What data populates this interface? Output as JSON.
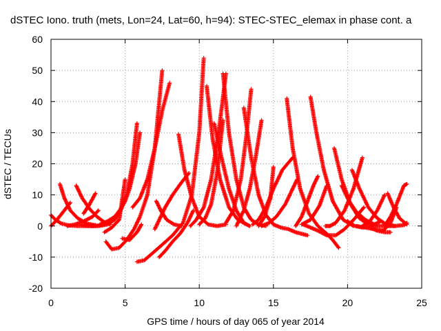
{
  "chart_data": {
    "type": "scatter",
    "title": "dSTEC Iono. truth (mets, Lon=24, Lat=60, h=94): STEC-STEC_elemax in phase cont. a",
    "xlabel": "GPS time / hours of day 065 of year 2014",
    "ylabel": "dSTEC  / TECUs",
    "xlim": [
      0,
      25
    ],
    "ylim": [
      -20,
      60
    ],
    "x_ticks": [
      0,
      5,
      10,
      15,
      20,
      25
    ],
    "y_ticks": [
      -20,
      -10,
      0,
      10,
      20,
      30,
      40,
      50,
      60
    ],
    "grid": true,
    "marker": "plus",
    "color": "#ff0000",
    "arcs": [
      {
        "x": [
          0.0,
          0.3,
          0.7,
          1.2,
          1.8,
          2.5,
          3.0
        ],
        "y": [
          3.5,
          2.0,
          0.8,
          0.2,
          0.0,
          0.0,
          0.3
        ]
      },
      {
        "x": [
          0.0,
          0.4,
          0.9,
          1.3
        ],
        "y": [
          0.0,
          2.0,
          5.0,
          7.5
        ]
      },
      {
        "x": [
          0.6,
          0.9,
          1.3,
          1.8,
          2.4,
          3.0
        ],
        "y": [
          13.5,
          9.0,
          5.0,
          2.5,
          0.8,
          0.2
        ]
      },
      {
        "x": [
          1.1,
          1.6,
          2.2,
          2.8,
          3.2
        ],
        "y": [
          0.0,
          0.5,
          1.5,
          3.0,
          5.0
        ]
      },
      {
        "x": [
          1.7,
          2.1,
          2.6,
          3.1,
          3.6,
          4.0
        ],
        "y": [
          13.0,
          9.0,
          5.5,
          3.0,
          1.2,
          0.5
        ]
      },
      {
        "x": [
          2.0,
          2.5,
          3.0,
          3.6,
          4.0
        ],
        "y": [
          0.5,
          0.0,
          0.0,
          0.5,
          1.5
        ]
      },
      {
        "x": [
          2.2,
          2.6,
          3.0
        ],
        "y": [
          4.0,
          7.0,
          10.5
        ]
      },
      {
        "x": [
          2.7,
          3.2,
          3.8,
          4.3,
          4.7,
          5.1,
          5.5,
          5.8
        ],
        "y": [
          0.0,
          0.0,
          0.5,
          2.0,
          5.0,
          10.0,
          20.0,
          33.0
        ]
      },
      {
        "x": [
          3.3,
          3.8,
          4.3,
          4.7,
          5.0,
          5.3,
          5.7,
          6.0
        ],
        "y": [
          0.5,
          1.5,
          3.0,
          5.5,
          8.0,
          12.0,
          20.0,
          30.0
        ]
      },
      {
        "x": [
          3.6,
          4.1,
          4.6,
          5.0
        ],
        "y": [
          -2.0,
          -0.5,
          2.0,
          15.0
        ]
      },
      {
        "x": [
          3.7,
          4.1,
          4.6,
          5.1,
          5.6,
          6.0,
          6.5,
          7.0,
          7.5
        ],
        "y": [
          -5.0,
          -7.5,
          -7.0,
          -4.5,
          -1.0,
          3.0,
          10.0,
          25.0,
          50.0
        ]
      },
      {
        "x": [
          4.8,
          5.3,
          5.8,
          6.1
        ],
        "y": [
          -4.0,
          -4.5,
          -2.0,
          0.5
        ]
      },
      {
        "x": [
          5.5,
          6.0,
          6.5,
          7.0,
          7.5,
          8.0
        ],
        "y": [
          6.0,
          9.0,
          15.0,
          25.0,
          37.0,
          46.0
        ]
      },
      {
        "x": [
          5.8,
          6.3,
          6.9,
          7.5,
          8.2,
          8.9,
          9.5,
          10.0,
          10.3
        ],
        "y": [
          -11.5,
          -11.0,
          -8.5,
          -6.0,
          -3.0,
          1.0,
          10.0,
          30.0,
          54.0
        ]
      },
      {
        "x": [
          7.0,
          7.3,
          7.7,
          8.2,
          8.8,
          9.3
        ],
        "y": [
          -1.0,
          2.0,
          6.0,
          10.0,
          14.0,
          17.0
        ]
      },
      {
        "x": [
          7.1,
          7.4,
          7.8,
          8.3,
          8.8
        ],
        "y": [
          8.0,
          5.0,
          2.0,
          0.5,
          0.0
        ]
      },
      {
        "x": [
          7.3,
          7.7,
          8.2,
          8.7,
          9.2,
          9.6
        ],
        "y": [
          -10.0,
          -8.0,
          -5.0,
          -2.5,
          1.0,
          5.0
        ]
      },
      {
        "x": [
          8.6,
          9.0,
          9.5,
          10.0,
          10.6,
          11.2,
          11.8
        ],
        "y": [
          29.5,
          18.0,
          9.0,
          3.0,
          0.5,
          0.0,
          0.5
        ]
      },
      {
        "x": [
          9.4,
          9.8,
          10.3,
          10.8,
          11.3,
          11.8
        ],
        "y": [
          0.0,
          2.0,
          6.0,
          15.0,
          30.0,
          49.0
        ]
      },
      {
        "x": [
          10.0,
          10.4,
          10.8,
          11.2,
          11.6
        ],
        "y": [
          0.5,
          2.5,
          7.0,
          17.0,
          34.0
        ]
      },
      {
        "x": [
          10.5,
          10.9,
          11.4,
          12.0,
          12.6,
          13.2
        ],
        "y": [
          45.0,
          28.0,
          15.0,
          6.0,
          2.0,
          0.5
        ]
      },
      {
        "x": [
          11.0,
          11.5,
          12.0,
          12.5,
          13.0,
          13.4
        ],
        "y": [
          33.0,
          22.0,
          12.0,
          5.0,
          1.0,
          0.0
        ]
      },
      {
        "x": [
          11.6,
          12.0,
          12.5,
          13.0,
          13.5,
          14.0,
          14.5
        ],
        "y": [
          49.0,
          30.0,
          15.0,
          6.0,
          2.0,
          0.5,
          0.0
        ]
      },
      {
        "x": [
          11.8,
          12.3,
          12.8,
          13.2,
          13.5
        ],
        "y": [
          1.0,
          5.0,
          15.0,
          30.0,
          44.0
        ]
      },
      {
        "x": [
          12.5,
          13.0,
          13.4,
          13.8,
          14.2
        ],
        "y": [
          0.0,
          5.0,
          12.0,
          22.0,
          34.0
        ]
      },
      {
        "x": [
          13.0,
          13.5,
          14.0,
          14.5,
          15.0,
          15.5,
          16.0,
          16.5,
          17.3
        ],
        "y": [
          38.0,
          22.0,
          10.0,
          3.5,
          0.5,
          -0.5,
          -1.0,
          -2.0,
          -3.0
        ]
      },
      {
        "x": [
          13.6,
          14.0,
          14.5,
          15.0,
          15.6,
          16.3
        ],
        "y": [
          0.5,
          2.0,
          6.0,
          12.0,
          18.0,
          22.0
        ]
      },
      {
        "x": [
          14.2,
          14.7,
          15.2,
          15.8,
          16.3,
          16.6
        ],
        "y": [
          0.0,
          1.0,
          3.0,
          7.0,
          12.0,
          15.0
        ]
      },
      {
        "x": [
          14.0,
          14.4,
          14.8,
          15.0
        ],
        "y": [
          0.0,
          3.0,
          9.0,
          19.0
        ]
      },
      {
        "x": [
          15.9,
          16.3,
          16.8,
          17.4,
          18.0,
          18.6,
          19.0,
          19.4
        ],
        "y": [
          41.0,
          25.0,
          12.0,
          4.0,
          0.0,
          -2.5,
          -4.5,
          -7.0
        ]
      },
      {
        "x": [
          16.5,
          16.9,
          17.3,
          17.7,
          18.0
        ],
        "y": [
          0.0,
          3.0,
          8.0,
          13.0,
          16.0
        ]
      },
      {
        "x": [
          16.9,
          17.5,
          18.1,
          18.6
        ],
        "y": [
          0.5,
          2.0,
          6.5,
          13.0
        ]
      },
      {
        "x": [
          17.0,
          17.5,
          18.0,
          18.6,
          19.2,
          19.8,
          20.5,
          21.1
        ],
        "y": [
          0.5,
          -0.5,
          -1.5,
          -3.0,
          -3.0,
          -1.0,
          2.5,
          6.0
        ]
      },
      {
        "x": [
          17.5,
          17.9,
          18.4,
          19.0,
          19.7,
          20.4
        ],
        "y": [
          41.5,
          30.0,
          18.0,
          8.0,
          2.0,
          0.0
        ]
      },
      {
        "x": [
          18.5,
          18.8,
          19.2,
          19.8,
          20.4,
          21.0
        ],
        "y": [
          0.0,
          0.0,
          1.0,
          5.0,
          12.0,
          22.0
        ]
      },
      {
        "x": [
          19.1,
          19.6,
          20.2,
          20.8,
          21.4,
          22.0
        ],
        "y": [
          25.0,
          15.0,
          7.0,
          2.5,
          0.5,
          0.0
        ]
      },
      {
        "x": [
          19.6,
          20.1,
          20.6,
          21.2,
          21.8
        ],
        "y": [
          13.0,
          8.0,
          4.5,
          2.0,
          0.5
        ]
      },
      {
        "x": [
          20.3,
          20.8,
          21.4,
          22.0,
          22.6,
          23.2
        ],
        "y": [
          18.0,
          12.0,
          6.0,
          2.5,
          0.5,
          0.0
        ]
      },
      {
        "x": [
          20.0,
          20.5,
          21.0,
          21.6,
          22.2
        ],
        "y": [
          1.5,
          0.0,
          -0.5,
          0.0,
          1.5
        ]
      },
      {
        "x": [
          20.6,
          21.2,
          21.8,
          22.4,
          22.9,
          23.3
        ],
        "y": [
          0.0,
          -0.5,
          -1.0,
          -1.5,
          1.0,
          6.0
        ]
      },
      {
        "x": [
          21.0,
          21.5,
          22.0,
          22.5
        ],
        "y": [
          0.0,
          1.5,
          5.0,
          10.0
        ]
      },
      {
        "x": [
          21.5,
          22.0,
          22.5,
          22.9
        ],
        "y": [
          -0.5,
          -1.5,
          -2.0,
          -2.0
        ]
      },
      {
        "x": [
          22.5,
          22.9,
          23.3,
          23.8,
          24.0
        ],
        "y": [
          0.0,
          3.0,
          7.0,
          13.0,
          13.5
        ]
      },
      {
        "x": [
          22.7,
          23.1,
          23.5,
          24.0
        ],
        "y": [
          10.5,
          6.0,
          2.5,
          0.5
        ]
      },
      {
        "x": [
          22.0,
          22.6,
          23.2,
          23.8,
          24.0
        ],
        "y": [
          0.0,
          0.0,
          0.0,
          0.3,
          1.0
        ]
      }
    ]
  }
}
